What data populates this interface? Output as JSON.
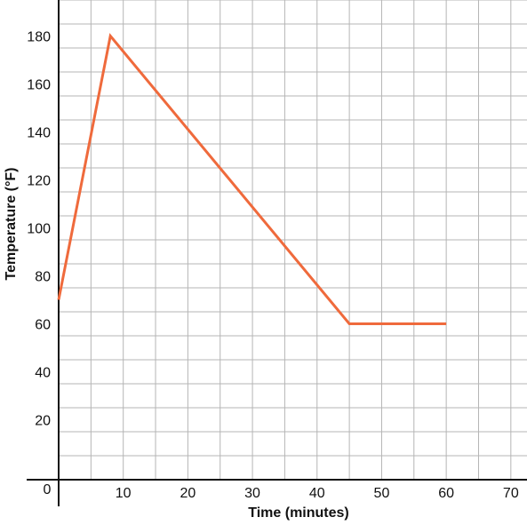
{
  "chart_data": {
    "type": "line",
    "title": "",
    "xlabel": "Time (minutes)",
    "ylabel": "Temperature (°F)",
    "xlim": [
      0,
      72.5
    ],
    "ylim": [
      -5,
      195
    ],
    "x_ticks": [
      10,
      20,
      30,
      40,
      50,
      60,
      70
    ],
    "y_ticks": [
      20,
      40,
      60,
      80,
      100,
      120,
      140,
      160,
      180
    ],
    "origin_label": "0",
    "grid": true,
    "grid_step_x": 5,
    "grid_step_y": 10,
    "line_color": "#ef6a3c",
    "series": [
      {
        "x": [
          0,
          8,
          45,
          60
        ],
        "y": [
          70,
          180,
          60,
          60
        ]
      }
    ]
  }
}
